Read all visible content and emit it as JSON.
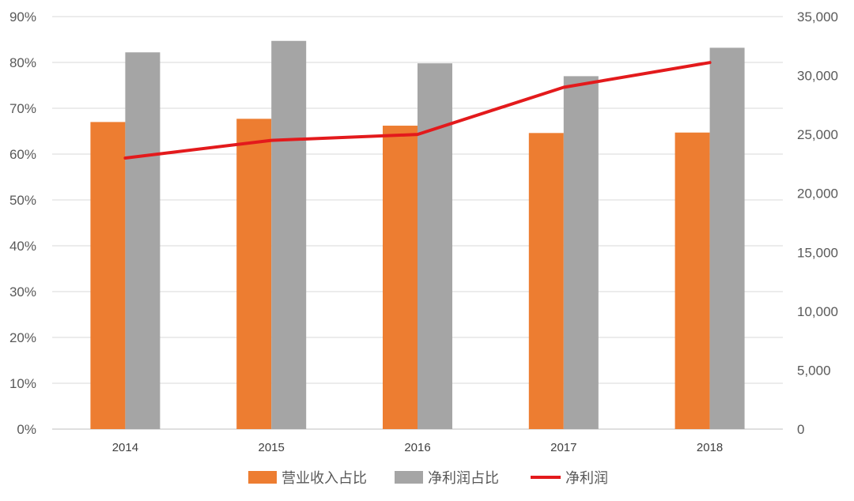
{
  "chart_data": {
    "type": "bar",
    "categories": [
      "2014",
      "2015",
      "2016",
      "2017",
      "2018"
    ],
    "series": [
      {
        "name": "营业收入占比",
        "type": "bar",
        "axis": "left",
        "values": [
          67,
          67.7,
          66.2,
          64.6,
          64.7
        ],
        "color": "#ed7d31"
      },
      {
        "name": "净利润占比",
        "type": "bar",
        "axis": "left",
        "values": [
          82.2,
          84.7,
          79.8,
          77.0,
          83.2
        ],
        "color": "#a5a5a5"
      },
      {
        "name": "净利润",
        "type": "line",
        "axis": "right",
        "values": [
          23000,
          24500,
          25000,
          29000,
          31100
        ],
        "color": "#e31a1c"
      }
    ],
    "left_axis": {
      "ylim": [
        0,
        90
      ],
      "ticks": [
        0,
        10,
        20,
        30,
        40,
        50,
        60,
        70,
        80,
        90
      ],
      "tick_labels": [
        "0%",
        "10%",
        "20%",
        "30%",
        "40%",
        "50%",
        "60%",
        "70%",
        "80%",
        "90%"
      ]
    },
    "right_axis": {
      "ylim": [
        0,
        35000
      ],
      "ticks": [
        0,
        5000,
        10000,
        15000,
        20000,
        25000,
        30000,
        35000
      ],
      "tick_labels": [
        "0",
        "5,000",
        "10,000",
        "15,000",
        "20,000",
        "25,000",
        "30,000",
        "35,000"
      ]
    },
    "title": "",
    "xlabel": "",
    "ylabel": "",
    "grid": true,
    "legend_position": "bottom"
  }
}
